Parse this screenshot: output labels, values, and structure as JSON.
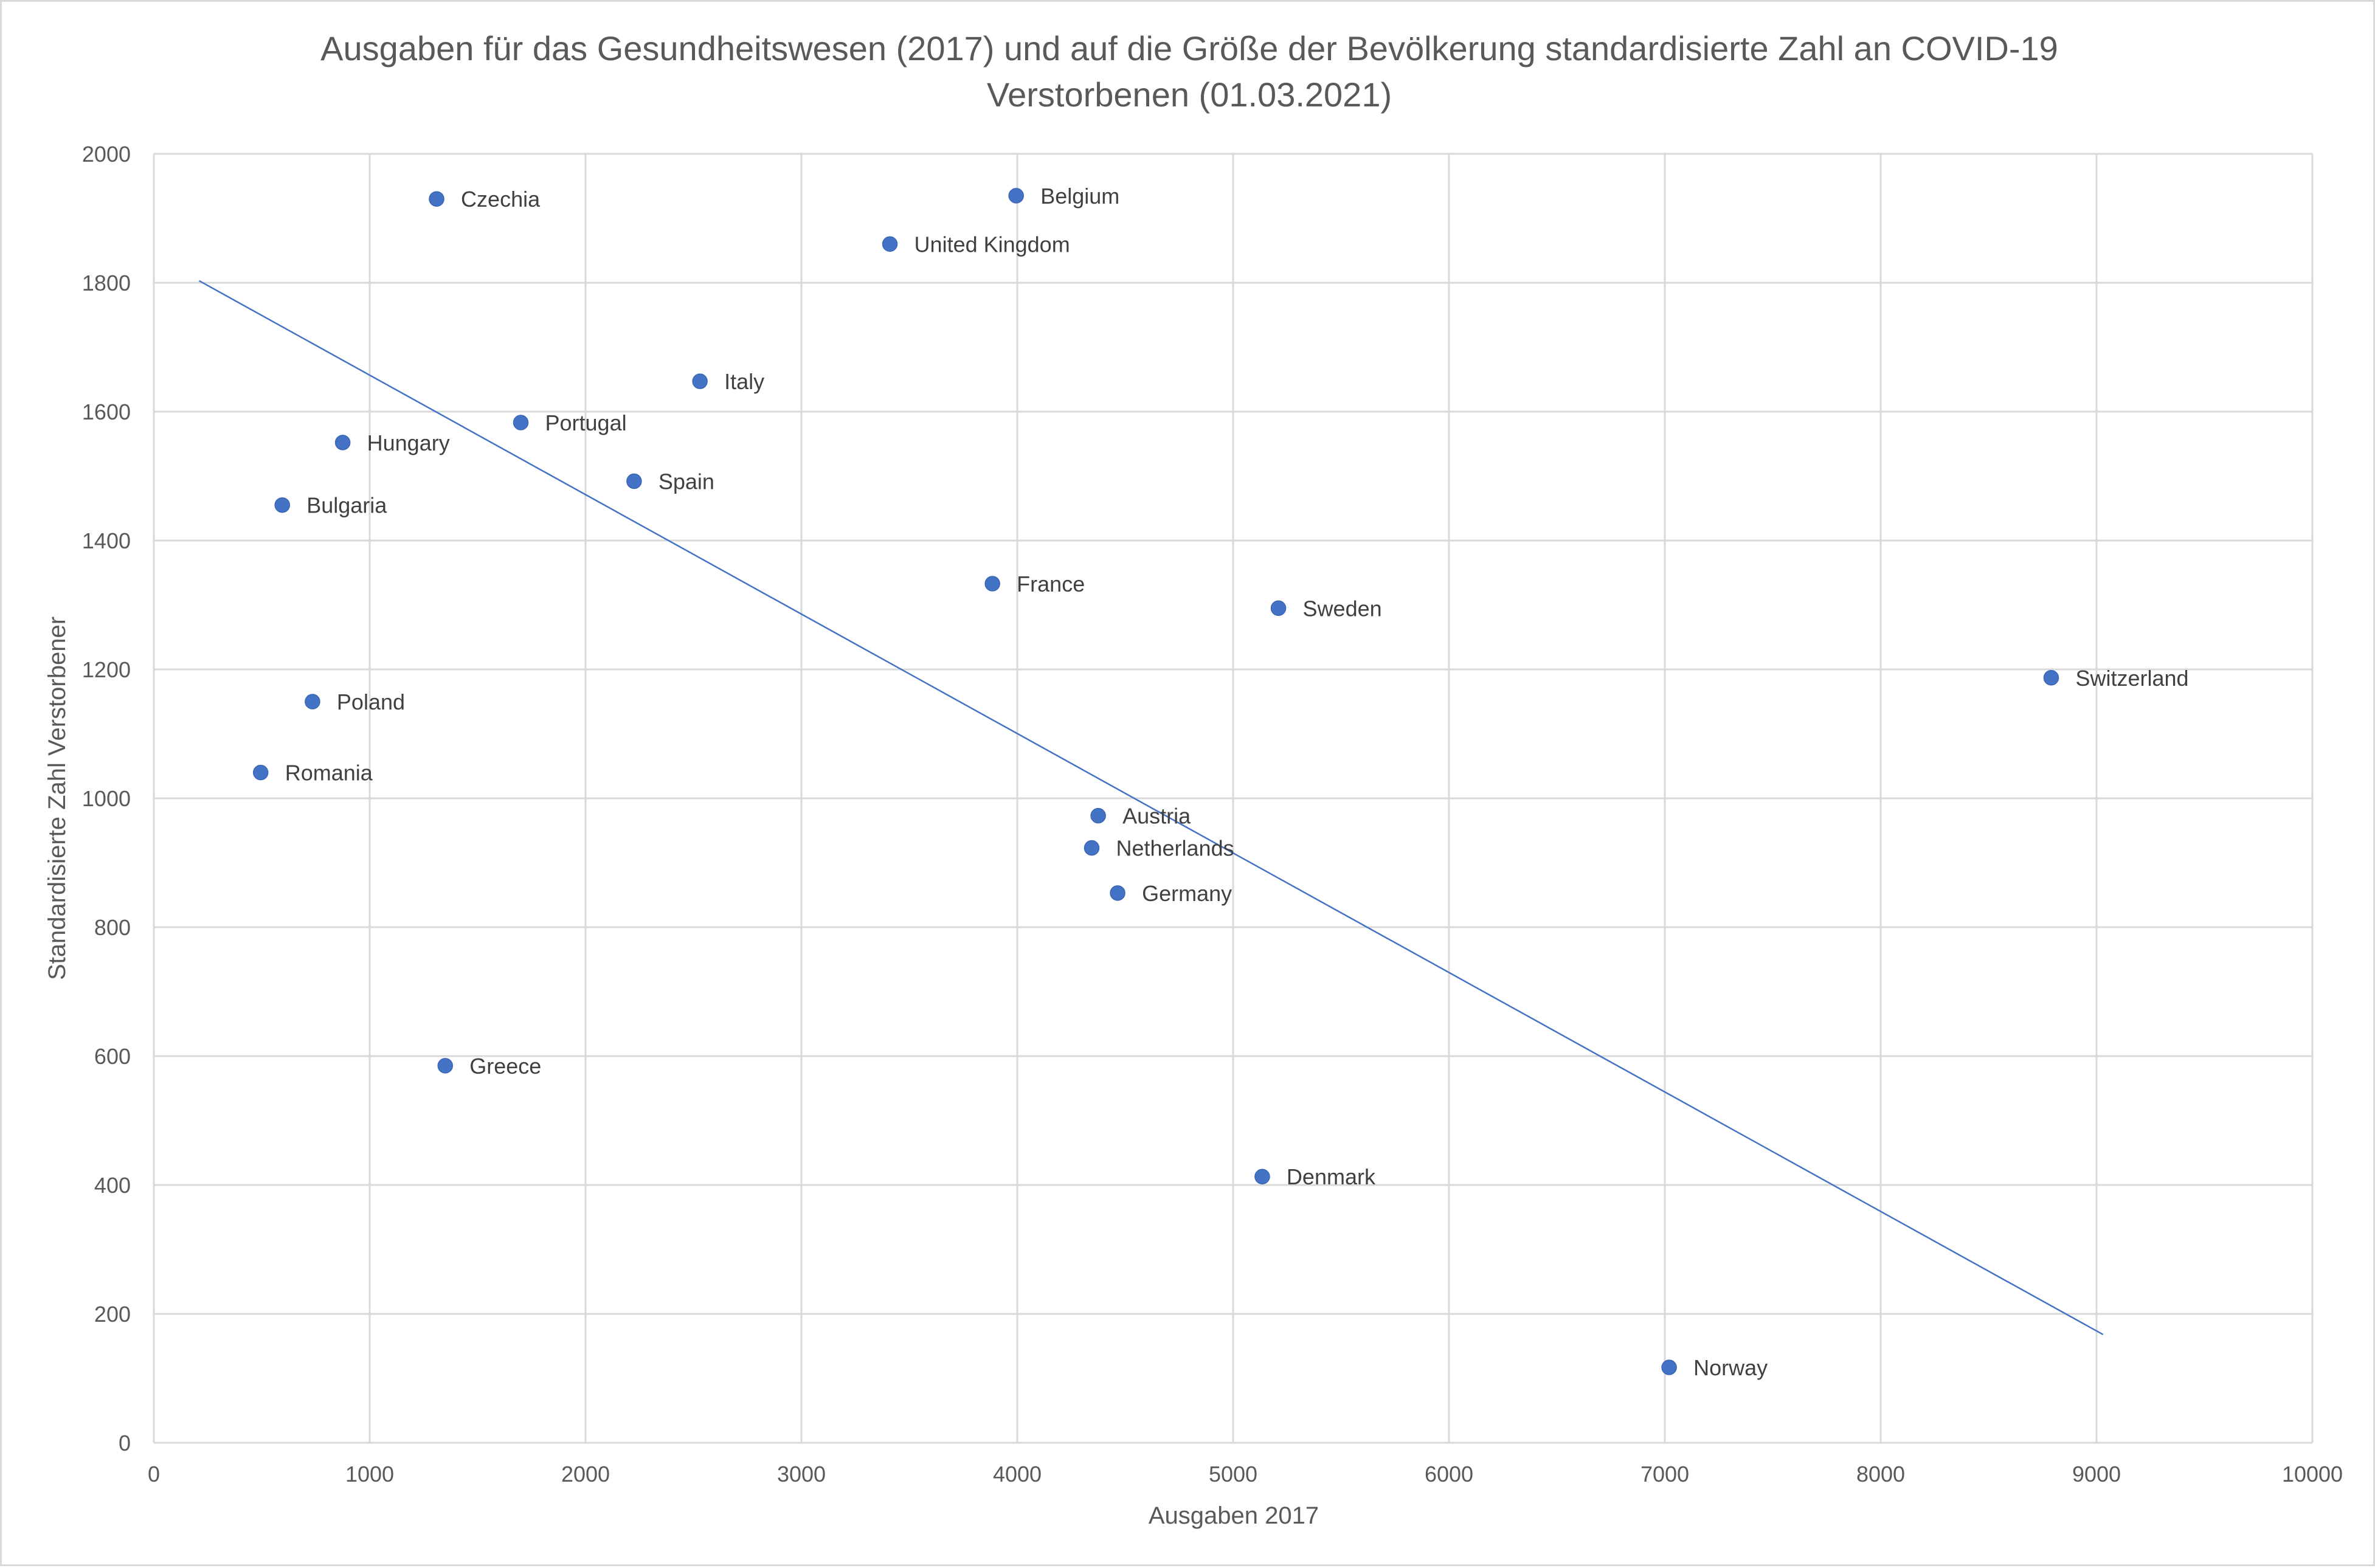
{
  "chart_data": {
    "type": "scatter",
    "title_lines": [
      "Ausgaben für das Gesundheitswesen (2017) und auf die Größe der Bevölkerung standardisierte Zahl an COVID-19",
      "Verstorbenen (01.03.2021)"
    ],
    "xlabel": "Ausgaben 2017",
    "ylabel": "Standardisierte Zahl Verstorbener",
    "xlim": [
      0,
      10000
    ],
    "ylim": [
      0,
      2000
    ],
    "x_ticks": [
      0,
      1000,
      2000,
      3000,
      4000,
      5000,
      6000,
      7000,
      8000,
      9000,
      10000
    ],
    "y_ticks": [
      0,
      200,
      400,
      600,
      800,
      1000,
      1200,
      1400,
      1600,
      1800,
      2000
    ],
    "grid": true,
    "legend": "none",
    "marker_color": "#4472c4",
    "points": [
      {
        "label": "Czechia",
        "x": 1310,
        "y": 1930
      },
      {
        "label": "Belgium",
        "x": 3995,
        "y": 1935
      },
      {
        "label": "United Kingdom",
        "x": 3410,
        "y": 1860
      },
      {
        "label": "Italy",
        "x": 2530,
        "y": 1647
      },
      {
        "label": "Portugal",
        "x": 1700,
        "y": 1583
      },
      {
        "label": "Hungary",
        "x": 875,
        "y": 1552
      },
      {
        "label": "Spain",
        "x": 2225,
        "y": 1492
      },
      {
        "label": "Bulgaria",
        "x": 595,
        "y": 1455
      },
      {
        "label": "France",
        "x": 3885,
        "y": 1333
      },
      {
        "label": "Sweden",
        "x": 5210,
        "y": 1295
      },
      {
        "label": "Switzerland",
        "x": 8790,
        "y": 1187
      },
      {
        "label": "Poland",
        "x": 735,
        "y": 1150
      },
      {
        "label": "Romania",
        "x": 495,
        "y": 1040
      },
      {
        "label": "Austria",
        "x": 4375,
        "y": 973
      },
      {
        "label": "Netherlands",
        "x": 4345,
        "y": 923
      },
      {
        "label": "Germany",
        "x": 4465,
        "y": 853
      },
      {
        "label": "Greece",
        "x": 1350,
        "y": 585
      },
      {
        "label": "Denmark",
        "x": 5135,
        "y": 413
      },
      {
        "label": "Norway",
        "x": 7020,
        "y": 117
      }
    ],
    "trendline": {
      "type": "linear",
      "color": "#4472c4",
      "from": {
        "x": 210,
        "y": 1803
      },
      "to": {
        "x": 9030,
        "y": 168
      }
    }
  }
}
